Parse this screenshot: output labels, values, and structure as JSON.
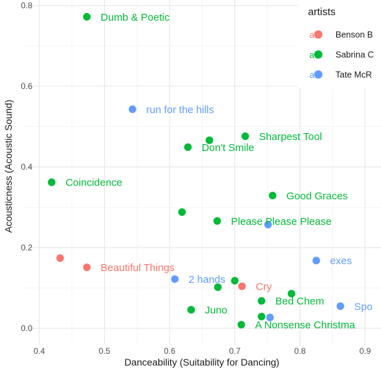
{
  "chart_data": {
    "type": "scatter",
    "xlabel": "Danceability (Suitability for Dancing)",
    "ylabel": "Acousticness (Acoustic Sound)",
    "xlim": [
      0.4,
      0.9
    ],
    "ylim": [
      0.0,
      0.8
    ],
    "x_ticks": [
      "0.4",
      "0.5",
      "0.6",
      "0.7",
      "0.8",
      "0.9"
    ],
    "y_ticks": [
      "0.0",
      "0.2",
      "0.4",
      "0.6",
      "0.8"
    ],
    "grid": true,
    "legend": {
      "title": "artists",
      "position": "right",
      "entries": [
        "Benson B",
        "Sabrina C",
        "Tate McR"
      ]
    },
    "colors": {
      "Benson B": "#F8766D",
      "Sabrina C": "#00BA38",
      "Tate McR": "#619CFF"
    },
    "series": [
      {
        "name": "Benson B",
        "color": "#F8766D",
        "points": [
          {
            "x": 0.432,
            "y": 0.174,
            "label": ""
          },
          {
            "x": 0.473,
            "y": 0.151,
            "label": "Beautiful Things"
          },
          {
            "x": 0.711,
            "y": 0.104,
            "label": "Cry"
          }
        ]
      },
      {
        "name": "Sabrina C",
        "color": "#00BA38",
        "points": [
          {
            "x": 0.473,
            "y": 0.772,
            "label": "Dumb & Poetic"
          },
          {
            "x": 0.716,
            "y": 0.476,
            "label": "Sharpest Tool"
          },
          {
            "x": 0.661,
            "y": 0.466,
            "label": ""
          },
          {
            "x": 0.628,
            "y": 0.449,
            "label": "Don't Smile"
          },
          {
            "x": 0.419,
            "y": 0.362,
            "label": "Coincidence"
          },
          {
            "x": 0.758,
            "y": 0.329,
            "label": "Good Graces"
          },
          {
            "x": 0.619,
            "y": 0.288,
            "label": ""
          },
          {
            "x": 0.673,
            "y": 0.266,
            "label": "Please Please Please"
          },
          {
            "x": 0.7,
            "y": 0.118,
            "label": ""
          },
          {
            "x": 0.674,
            "y": 0.102,
            "label": ""
          },
          {
            "x": 0.787,
            "y": 0.086,
            "label": ""
          },
          {
            "x": 0.741,
            "y": 0.068,
            "label": "Bed Chem"
          },
          {
            "x": 0.633,
            "y": 0.046,
            "label": "Juno"
          },
          {
            "x": 0.741,
            "y": 0.029,
            "label": ""
          },
          {
            "x": 0.71,
            "y": 0.009,
            "label": "A Nonsense Christma"
          }
        ]
      },
      {
        "name": "Tate McR",
        "color": "#619CFF",
        "points": [
          {
            "x": 0.543,
            "y": 0.543,
            "label": "run for the hills"
          },
          {
            "x": 0.751,
            "y": 0.257,
            "label": ""
          },
          {
            "x": 0.825,
            "y": 0.168,
            "label": "exes"
          },
          {
            "x": 0.608,
            "y": 0.122,
            "label": "2 hands"
          },
          {
            "x": 0.862,
            "y": 0.055,
            "label": "Spo"
          },
          {
            "x": 0.754,
            "y": 0.027,
            "label": ""
          }
        ]
      }
    ]
  }
}
